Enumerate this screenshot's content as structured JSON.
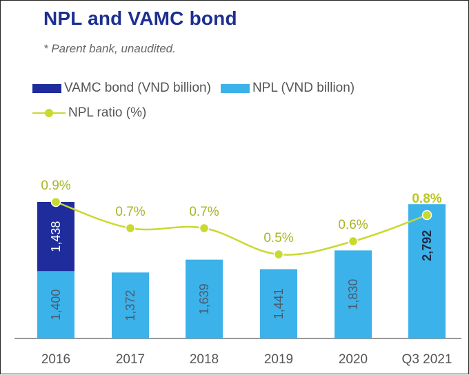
{
  "title": "NPL and VAMC bond",
  "subtitle": "* Parent bank, unaudited.",
  "legend": {
    "vamc": "VAMC bond (VND billion)",
    "npl": "NPL (VND billion)",
    "ratio": "NPL ratio (%)"
  },
  "colors": {
    "vamc": "#1f2d9c",
    "npl": "#3cb2ea",
    "ratio": "#c9d92e",
    "title": "#1d2f8f"
  },
  "chart_data": {
    "type": "bar",
    "categories": [
      "2016",
      "2017",
      "2018",
      "2019",
      "2020",
      "Q3 2021"
    ],
    "series": [
      {
        "name": "NPL (VND billion)",
        "values": [
          1400,
          1372,
          1639,
          1441,
          1830,
          2792
        ],
        "labels": [
          "1,400",
          "1,372",
          "1,639",
          "1,441",
          "1,830",
          "2,792"
        ]
      },
      {
        "name": "VAMC bond (VND billion)",
        "values": [
          1438,
          0,
          0,
          0,
          0,
          0
        ],
        "labels": [
          "1,438",
          "",
          "",
          "",
          "",
          ""
        ]
      },
      {
        "name": "NPL ratio (%)",
        "type": "line",
        "values": [
          0.9,
          0.7,
          0.7,
          0.5,
          0.6,
          0.8
        ],
        "labels": [
          "0.9%",
          "0.7%",
          "0.7%",
          "0.5%",
          "0.6%",
          "0.8%"
        ]
      }
    ],
    "stacked": true,
    "ylim": [
      0,
      2838
    ],
    "ratio_ylim": [
      0,
      1.0
    ],
    "highlight_last": true
  }
}
